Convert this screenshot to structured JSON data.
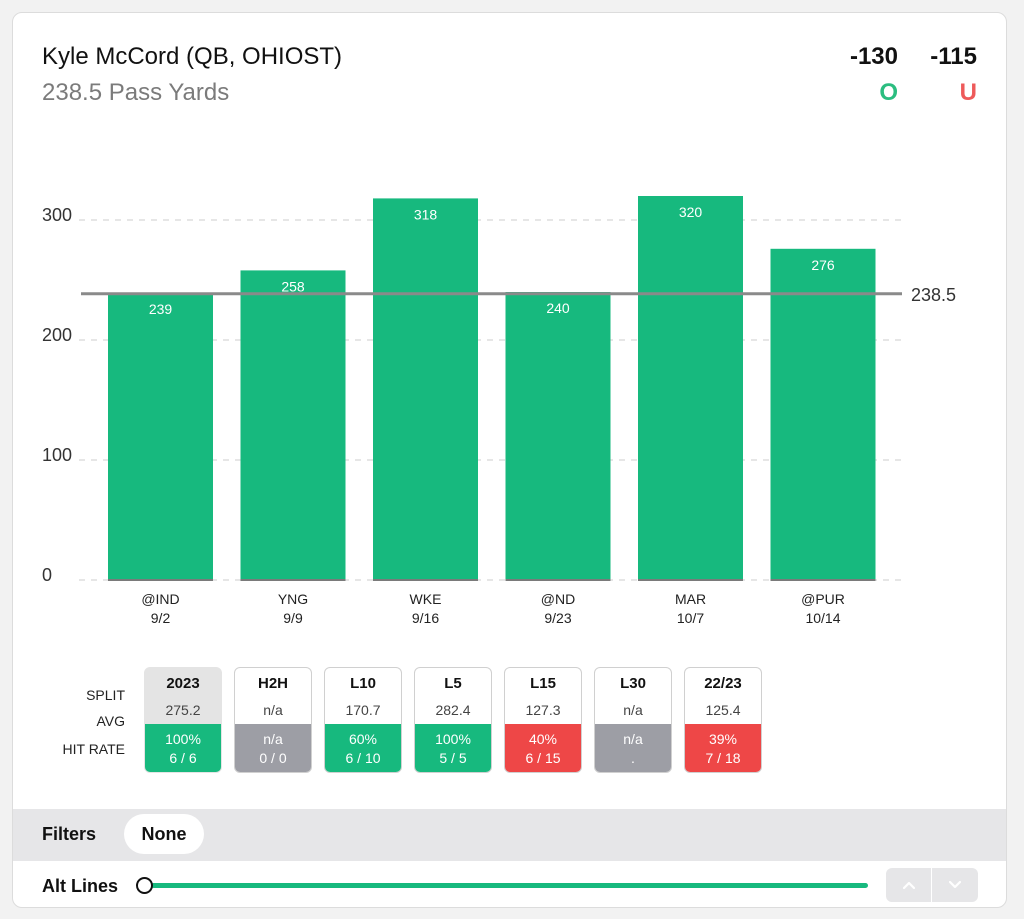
{
  "header": {
    "player": "Kyle McCord (QB, OHIOST)",
    "prop": "238.5 Pass Yards",
    "over_odds": "-130",
    "under_odds": "-115",
    "over_label": "O",
    "under_label": "U"
  },
  "colors": {
    "bar": "#17b97e",
    "line": "#8a8a8a",
    "over": "#2bbd80",
    "under": "#ee5a5a",
    "hit_green": "#17b97e",
    "hit_gray": "#9d9ea5",
    "hit_red": "#ee4747"
  },
  "chart_data": {
    "type": "bar",
    "categories": [
      "@IND",
      "YNG",
      "WKE",
      "@ND",
      "MAR",
      "@PUR"
    ],
    "dates": [
      "9/2",
      "9/9",
      "9/16",
      "9/23",
      "10/7",
      "10/14"
    ],
    "values": [
      239,
      258,
      318,
      240,
      320,
      276
    ],
    "line_value": 238.5,
    "line_label": "238.5",
    "ylim": [
      0,
      300
    ],
    "yticks": [
      0,
      100,
      200,
      300
    ],
    "grid": true
  },
  "splits": {
    "row_labels": {
      "split": "SPLIT",
      "avg": "AVG",
      "hit_rate": "HIT RATE"
    },
    "columns": [
      {
        "split": "2023",
        "avg": "275.2",
        "pct": "100%",
        "record": "6 / 6",
        "status": "green",
        "selected": true
      },
      {
        "split": "H2H",
        "avg": "n/a",
        "pct": "n/a",
        "record": "0 / 0",
        "status": "gray",
        "selected": false
      },
      {
        "split": "L10",
        "avg": "170.7",
        "pct": "60%",
        "record": "6 / 10",
        "status": "green",
        "selected": false
      },
      {
        "split": "L5",
        "avg": "282.4",
        "pct": "100%",
        "record": "5 / 5",
        "status": "green",
        "selected": false
      },
      {
        "split": "L15",
        "avg": "127.3",
        "pct": "40%",
        "record": "6 / 15",
        "status": "red",
        "selected": false
      },
      {
        "split": "L30",
        "avg": "n/a",
        "pct": "n/a",
        "record": ".",
        "status": "gray",
        "selected": false
      },
      {
        "split": "22/23",
        "avg": "125.4",
        "pct": "39%",
        "record": "7 / 18",
        "status": "red",
        "selected": false
      }
    ]
  },
  "filters": {
    "label": "Filters",
    "selected": "None"
  },
  "alt_lines": {
    "label": "Alt Lines",
    "position": 0
  },
  "icons": {
    "up": "chevron-up-icon",
    "down": "chevron-down-icon"
  }
}
